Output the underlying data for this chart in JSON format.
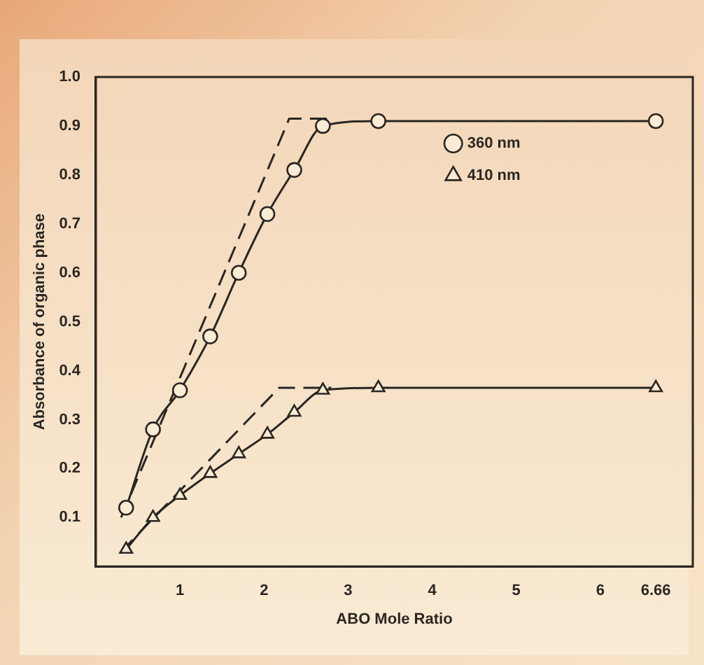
{
  "chart_data": {
    "type": "line",
    "xlabel": "ABO Mole Ratio",
    "ylabel": "Absorbance of organic phase",
    "xlim": [
      0,
      7.1
    ],
    "xticks": [
      1,
      2,
      3,
      4,
      5,
      6,
      6.66
    ],
    "ylim": [
      0,
      1.0
    ],
    "yticks": [
      0.1,
      0.2,
      0.3,
      0.4,
      0.5,
      0.6,
      0.7,
      0.8,
      0.9,
      {
        "value": 1.0,
        "label": "1.0"
      }
    ],
    "grid": false,
    "legend": "top right",
    "series": [
      {
        "name": "360 nm",
        "color": "#2a2622",
        "marker": "circle",
        "line_style": "solid",
        "x": [
          0.36,
          0.68,
          1.0,
          1.36,
          1.7,
          2.04,
          2.36,
          2.7,
          3.36,
          6.66
        ],
        "values": [
          0.12,
          0.28,
          0.36,
          0.47,
          0.6,
          0.72,
          0.81,
          0.9,
          0.91,
          0.91
        ]
      },
      {
        "name": "410 nm",
        "color": "#2a2622",
        "marker": "triangle",
        "line_style": "solid",
        "x": [
          0.36,
          0.68,
          1.0,
          1.36,
          1.7,
          2.04,
          2.36,
          2.7,
          3.36,
          6.66
        ],
        "values": [
          0.035,
          0.1,
          0.145,
          0.19,
          0.23,
          0.27,
          0.315,
          0.36,
          0.365,
          0.365
        ]
      },
      {
        "color": "#2a2622",
        "marker": "none",
        "line_style": "dashed",
        "x": [
          0.3,
          2.3,
          2.84
        ],
        "values": [
          0.1,
          0.915,
          0.915
        ]
      },
      {
        "color": "#2a2622",
        "marker": "none",
        "line_style": "dashed",
        "x": [
          0.3,
          2.18,
          2.8
        ],
        "values": [
          0.03,
          0.365,
          0.365
        ]
      }
    ]
  }
}
